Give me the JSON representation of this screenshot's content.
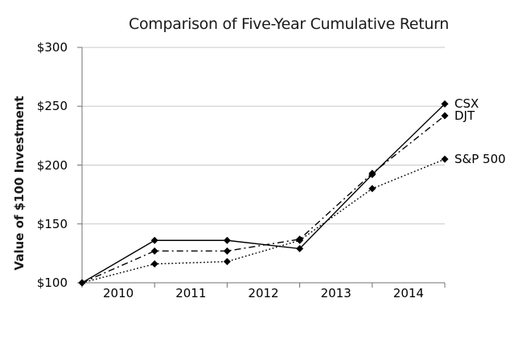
{
  "chart_data": {
    "type": "line",
    "title": "Comparison of Five-Year Cumulative Return",
    "ylabel": "Value of $100 Investment",
    "ylim": [
      100,
      300
    ],
    "ytick_values": [
      300,
      250,
      200,
      150,
      100
    ],
    "ytick_labels": [
      "$300",
      "$250",
      "$200",
      "$150",
      "$100"
    ],
    "x": [
      "2009",
      "2010",
      "2011",
      "2012",
      "2013",
      "2014"
    ],
    "xtick_labels": [
      "2010",
      "2011",
      "2012",
      "2013",
      "2014"
    ],
    "grid": "horizontal",
    "legend_position": "end-of-line-right",
    "marker": "diamond",
    "series": [
      {
        "name": "CSX",
        "line_style": "solid",
        "values": [
          100,
          136,
          136,
          129,
          192,
          252
        ]
      },
      {
        "name": "DJT",
        "line_style": "dash-dot",
        "values": [
          100,
          127,
          127,
          137,
          193,
          242
        ]
      },
      {
        "name": "S&P 500",
        "line_style": "dotted",
        "values": [
          100,
          116,
          118,
          136,
          180,
          205
        ]
      }
    ],
    "colors": {
      "line": "#000000",
      "grid": "#c8c8c8",
      "axis": "#707070",
      "background": "#ffffff",
      "text": "#000000"
    }
  }
}
